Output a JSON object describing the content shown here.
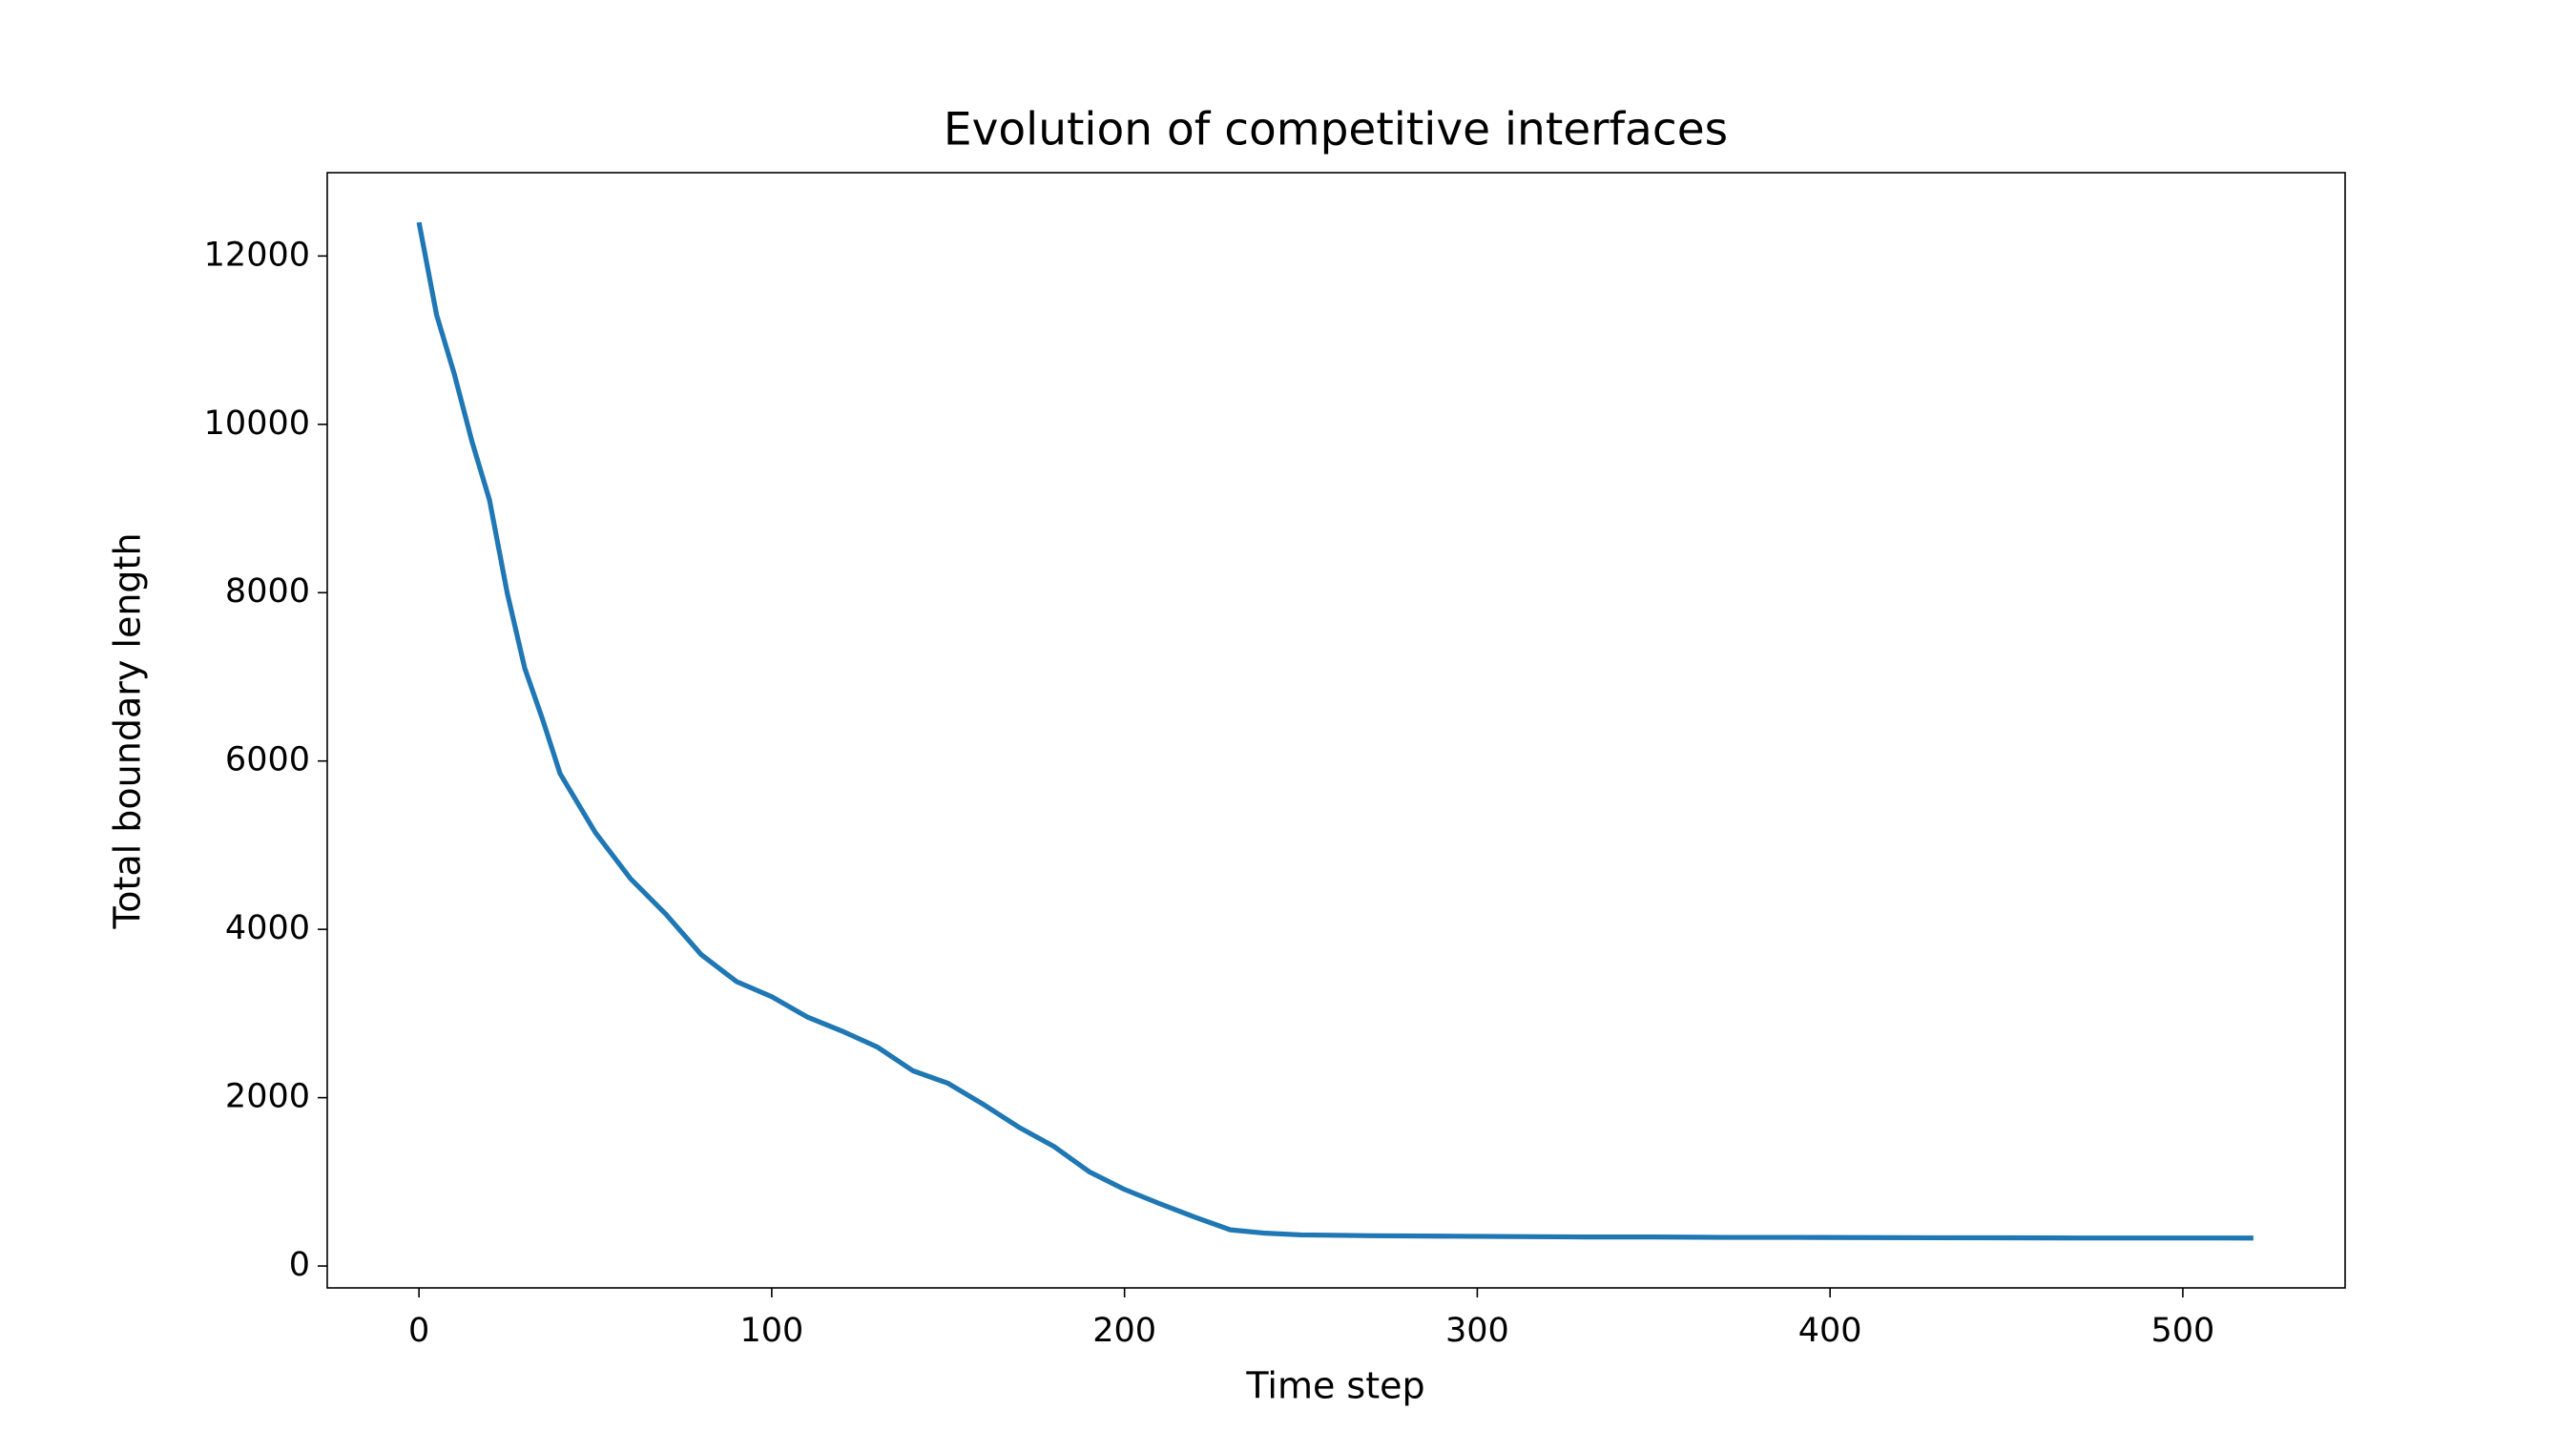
{
  "chart_data": {
    "type": "line",
    "title": "Evolution of competitive interfaces",
    "x_label": "Time step",
    "y_label": "Total boundary length",
    "x": [
      0,
      5,
      10,
      15,
      20,
      25,
      30,
      35,
      40,
      45,
      50,
      60,
      70,
      80,
      90,
      100,
      110,
      120,
      130,
      140,
      150,
      160,
      170,
      180,
      190,
      200,
      210,
      220,
      230,
      240,
      250,
      270,
      290,
      310,
      330,
      350,
      370,
      390,
      410,
      430,
      450,
      470,
      490,
      510,
      520
    ],
    "series": [
      {
        "color": "#1f77b4",
        "values": [
          12400,
          11300,
          10600,
          9800,
          9100,
          8000,
          7100,
          6500,
          5850,
          5500,
          5150,
          4600,
          4180,
          3700,
          3380,
          3200,
          2960,
          2790,
          2600,
          2320,
          2170,
          1920,
          1650,
          1420,
          1120,
          910,
          740,
          580,
          430,
          390,
          370,
          360,
          355,
          350,
          345,
          345,
          340,
          340,
          338,
          336,
          335,
          333,
          333,
          333,
          332
        ]
      }
    ],
    "xlim": [
      -26,
      546
    ],
    "ylim": [
      -260,
      12990
    ],
    "xticks": [
      0,
      100,
      200,
      300,
      400,
      500
    ],
    "yticks": [
      0,
      2000,
      4000,
      6000,
      8000,
      10000,
      12000
    ],
    "grid": false
  }
}
